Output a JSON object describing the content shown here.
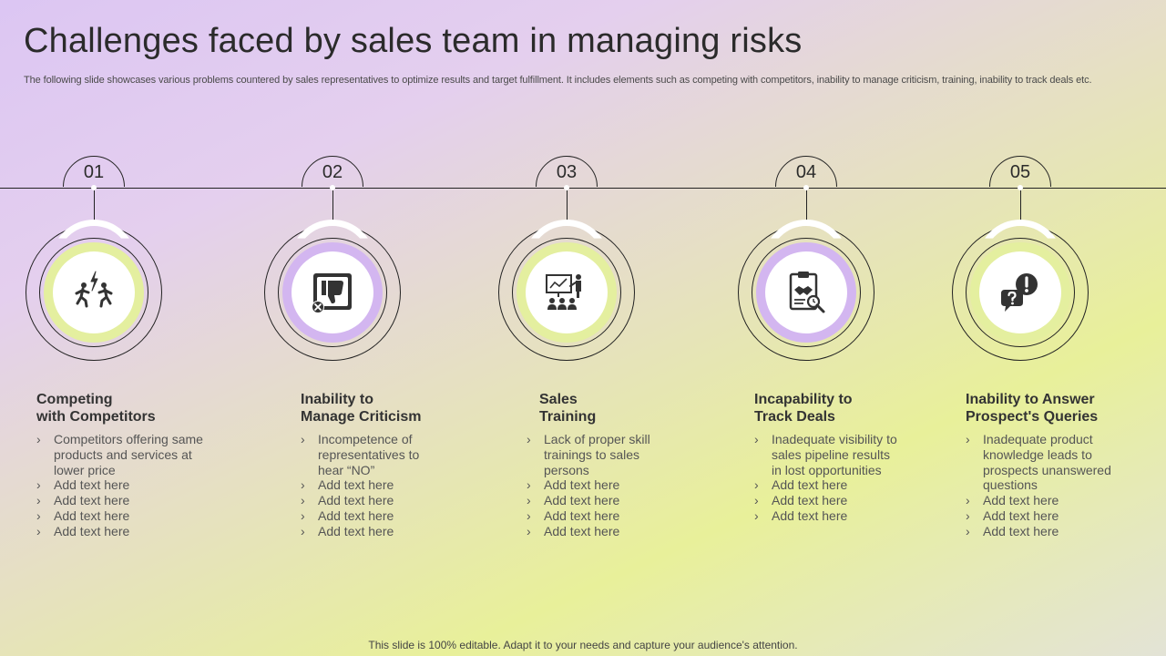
{
  "title": "Challenges faced by sales team in managing risks",
  "subtitle": "The following slide showcases various problems countered by sales representatives to optimize results and target fulfillment. It includes elements such as competing with competitors, inability to manage criticism, training, inability to track deals etc.",
  "colors": {
    "green_ring": "#e4ef9f",
    "purple_ring": "#d3b6f0",
    "icon_dark": "#333333"
  },
  "steps": [
    {
      "number": "01",
      "icon": "competitors-running-icon",
      "heading_line1": "Competing",
      "heading_line2": "with Competitors",
      "bullets": [
        "Competitors offering same products and services at lower price",
        "Add text here",
        "Add text here",
        "Add text here",
        "Add text here"
      ]
    },
    {
      "number": "02",
      "icon": "thumbs-down-icon",
      "heading_line1": "Inability to",
      "heading_line2": "Manage Criticism",
      "bullets": [
        "Incompetence of representatives to hear “NO”",
        "Add text here",
        "Add text here",
        "Add text here",
        "Add text here"
      ]
    },
    {
      "number": "03",
      "icon": "presentation-training-icon",
      "heading_line1": "Sales",
      "heading_line2": "Training",
      "bullets": [
        "Lack of proper skill trainings to sales persons",
        "Add text here",
        "Add text here",
        "Add text here",
        "Add text here"
      ]
    },
    {
      "number": "04",
      "icon": "deal-clipboard-icon",
      "heading_line1": "Incapability to",
      "heading_line2": "Track Deals",
      "bullets": [
        "Inadequate visibility to sales pipeline results in lost opportunities",
        "Add text here",
        "Add text here",
        "Add text here"
      ]
    },
    {
      "number": "05",
      "icon": "question-exclamation-icon",
      "heading_line1": "Inability to Answer",
      "heading_line2": "Prospect's Queries",
      "bullets": [
        "Inadequate product knowledge leads  to prospects unanswered questions",
        "Add text here",
        "Add text here",
        "Add text here"
      ]
    }
  ],
  "footer": "This slide is 100% editable. Adapt it to your needs and capture your audience's attention."
}
